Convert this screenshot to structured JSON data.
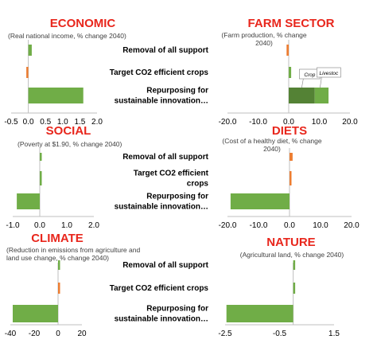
{
  "scenarios": [
    "Removal of all support",
    "Target CO2 efficient crops",
    "Repurposing for sustainable innovation…"
  ],
  "scenario_labels_wrapped": {
    "economic": [
      [
        "Removal of all support"
      ],
      [
        "Target CO2 efficient crops"
      ],
      [
        "Repurposing for",
        "sustainable innovation…"
      ]
    ],
    "social": [
      [
        "Removal of all support"
      ],
      [
        "Target CO2 efficient",
        "crops"
      ],
      [
        "Repurposing for",
        "sustainable innovation…"
      ]
    ],
    "climate": [
      [
        "Removal of all support"
      ],
      [
        "Target CO2 efficient crops"
      ],
      [
        "Repurposing for",
        "sustainable innovation…"
      ]
    ]
  },
  "colors": {
    "title": "#e8261c",
    "green": "#70ad47",
    "green_dark": "#548235",
    "orange": "#ed7d31",
    "axis": "#bfbfbf",
    "text": "#000000",
    "subtitle": "#404040"
  },
  "chart_data": [
    {
      "id": "economic",
      "type": "bar",
      "orientation": "horizontal",
      "title": "ECONOMIC",
      "subtitle": [
        "(Real national income, % change 2040)"
      ],
      "xlim": [
        -0.5,
        2.0
      ],
      "ticks": [
        -0.5,
        0,
        0.5,
        1,
        1.5,
        2
      ],
      "tick_labels": [
        "-0.5",
        "0.0",
        "0.5",
        "1.0",
        "1.5",
        "2.0"
      ],
      "values": [
        0.1,
        -0.05,
        1.6
      ],
      "bar_colors": [
        "green",
        "orange",
        "green"
      ]
    },
    {
      "id": "farm",
      "type": "bar",
      "orientation": "horizontal",
      "stacked_last": true,
      "title": "FARM SECTOR",
      "subtitle": [
        "(Farm production, % change",
        "2040)"
      ],
      "xlim": [
        -20,
        20
      ],
      "ticks": [
        -20,
        -10,
        0,
        10,
        20
      ],
      "tick_labels": [
        "-20.0",
        "-10.0",
        "0.0",
        "10.0",
        "20.0"
      ],
      "values": [
        -0.7,
        0.8,
        13.0
      ],
      "bar_colors": [
        "orange",
        "green",
        "green"
      ],
      "stack_last": [
        {
          "name": "Crop",
          "value": 8.5,
          "color": "green_dark"
        },
        {
          "name": "Livestoc",
          "value": 4.5,
          "color": "green"
        }
      ]
    },
    {
      "id": "social",
      "type": "bar",
      "orientation": "horizontal",
      "title": "SOCIAL",
      "subtitle": [
        "(Poverty at $1.90, % change 2040)"
      ],
      "xlim": [
        -1.0,
        2.0
      ],
      "ticks": [
        -1,
        0,
        1,
        2
      ],
      "tick_labels": [
        "-1.0",
        "0.0",
        "1.0",
        "2.0"
      ],
      "values": [
        0.02,
        0.02,
        -0.85
      ],
      "bar_colors": [
        "green",
        "green",
        "green"
      ]
    },
    {
      "id": "diets",
      "type": "bar",
      "orientation": "horizontal",
      "title": "DIETS",
      "subtitle": [
        "(Cost of a healthy diet, % change",
        "2040)"
      ],
      "xlim": [
        -20,
        20
      ],
      "ticks": [
        -20,
        -10,
        0,
        10,
        20
      ],
      "tick_labels": [
        "-20.0",
        "-10.0",
        "0.0",
        "10.0",
        "20.0"
      ],
      "values": [
        1.0,
        0.1,
        -19.0
      ],
      "bar_colors": [
        "orange",
        "orange",
        "green"
      ]
    },
    {
      "id": "climate",
      "type": "bar",
      "orientation": "horizontal",
      "title": "CLIMATE",
      "subtitle": [
        "(Reduction in emissions from agriculture and",
        "land use change, % change 2040)"
      ],
      "xlim": [
        -40,
        20
      ],
      "ticks": [
        -40,
        -20,
        0,
        20
      ],
      "tick_labels": [
        "-40",
        "-20",
        "0",
        "20"
      ],
      "values": [
        0.3,
        0.6,
        -38
      ],
      "bar_colors": [
        "green",
        "orange",
        "green"
      ]
    },
    {
      "id": "nature",
      "type": "bar",
      "orientation": "horizontal",
      "title": "NATURE",
      "subtitle": [
        "(Agricultural land, % change 2040)"
      ],
      "xlim": [
        -2.5,
        1.5
      ],
      "ticks": [
        -2.5,
        -0.5,
        1.5
      ],
      "tick_labels": [
        "-2.5",
        "-0.5",
        "1.5"
      ],
      "values": [
        0.02,
        0.03,
        -2.45
      ],
      "bar_colors": [
        "green",
        "green",
        "green"
      ]
    }
  ]
}
